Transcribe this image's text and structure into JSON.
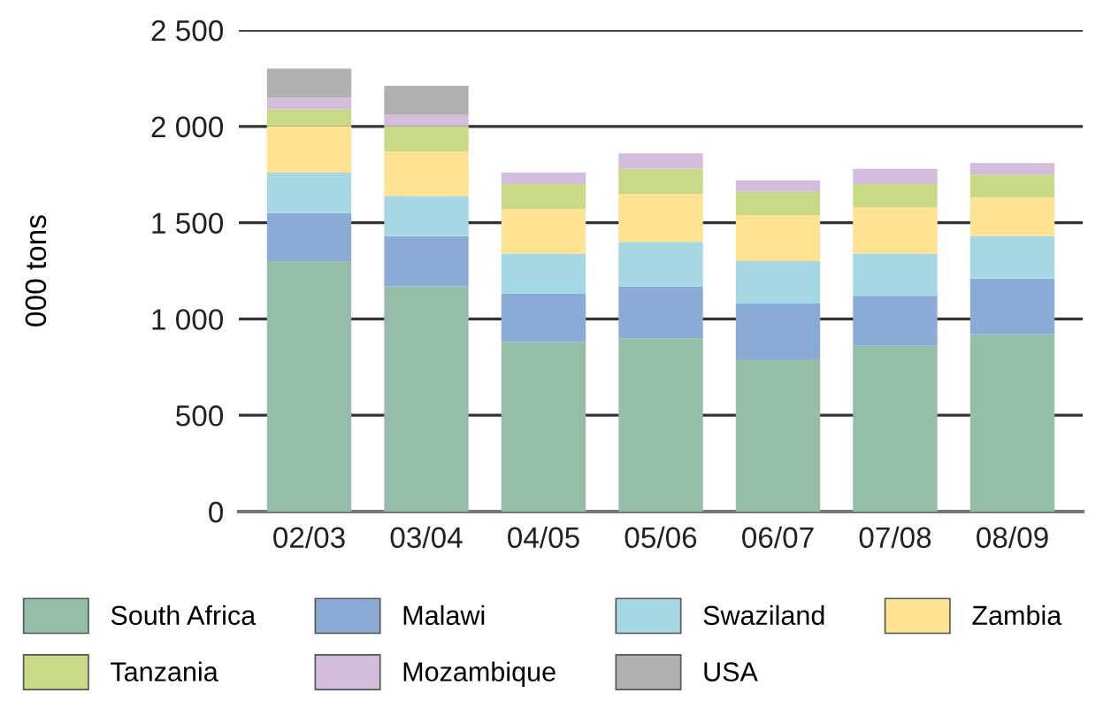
{
  "chart_data": {
    "type": "bar",
    "stacked": true,
    "ylabel": "000 tons",
    "categories": [
      "02/03",
      "03/04",
      "04/05",
      "05/06",
      "06/07",
      "07/08",
      "08/09"
    ],
    "series": [
      {
        "name": "South Africa",
        "color": "#95bea8",
        "values": [
          1300,
          1170,
          880,
          900,
          790,
          860,
          920
        ]
      },
      {
        "name": "Malawi",
        "color": "#8aabd6",
        "values": [
          250,
          260,
          250,
          270,
          290,
          260,
          290
        ]
      },
      {
        "name": "Swaziland",
        "color": "#a5d8e3",
        "values": [
          210,
          210,
          210,
          230,
          220,
          220,
          220
        ]
      },
      {
        "name": "Zambia",
        "color": "#ffe392",
        "values": [
          240,
          230,
          230,
          250,
          240,
          240,
          200
        ]
      },
      {
        "name": "Tanzania",
        "color": "#c8da86",
        "values": [
          90,
          130,
          130,
          130,
          120,
          120,
          120
        ]
      },
      {
        "name": "Mozambique",
        "color": "#d3bcdc",
        "values": [
          60,
          60,
          60,
          80,
          60,
          80,
          60
        ]
      },
      {
        "name": "USA",
        "color": "#b0b0b0",
        "values": [
          150,
          150,
          0,
          0,
          0,
          0,
          0
        ]
      }
    ],
    "ylim": [
      0,
      2500
    ],
    "yticks": [
      0,
      500,
      {
        "value": 1000,
        "label": "1 000"
      },
      {
        "value": 1500,
        "label": "1 500"
      },
      {
        "value": 2000,
        "label": "2 000"
      },
      {
        "value": 2500,
        "label": "2 500"
      }
    ],
    "grid": "y",
    "legend": "bottom"
  }
}
